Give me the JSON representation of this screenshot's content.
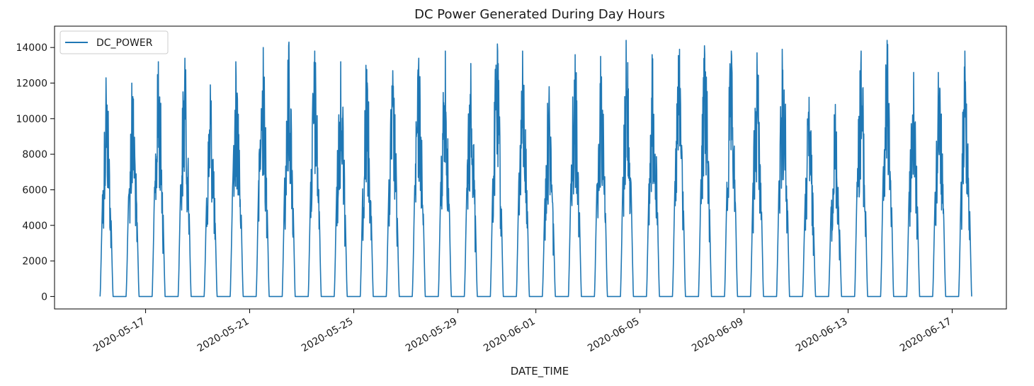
{
  "chart_data": {
    "type": "line",
    "title": "DC Power Generated During Day Hours",
    "xlabel": "DATE_TIME",
    "ylabel": "",
    "x_range": [
      "2020-05-13T12:00:00",
      "2020-06-19T02:00:00"
    ],
    "ylim": [
      -700,
      15200
    ],
    "y_ticks": [
      0,
      2000,
      4000,
      6000,
      8000,
      10000,
      12000,
      14000
    ],
    "x_ticks": [
      "2020-05-17",
      "2020-05-21",
      "2020-05-25",
      "2020-05-29",
      "2020-06-01",
      "2020-06-05",
      "2020-06-09",
      "2020-06-13",
      "2020-06-17"
    ],
    "grid": false,
    "legend": {
      "position": "top-left",
      "entries": [
        "DC_POWER"
      ]
    },
    "series": [
      {
        "name": "DC_POWER",
        "color": "#1f77b4",
        "sampling": "daylight hours approx. 06:00-18:00; daily peak values (W) estimated from the figure",
        "days": [
          {
            "date": "2020-05-15",
            "peak": 12300
          },
          {
            "date": "2020-05-16",
            "peak": 12000
          },
          {
            "date": "2020-05-17",
            "peak": 13200
          },
          {
            "date": "2020-05-18",
            "peak": 13400
          },
          {
            "date": "2020-05-19",
            "peak": 11900
          },
          {
            "date": "2020-05-20",
            "peak": 13200
          },
          {
            "date": "2020-05-21",
            "peak": 14000
          },
          {
            "date": "2020-05-22",
            "peak": 14300
          },
          {
            "date": "2020-05-23",
            "peak": 13800
          },
          {
            "date": "2020-05-24",
            "peak": 13200
          },
          {
            "date": "2020-05-25",
            "peak": 13000
          },
          {
            "date": "2020-05-26",
            "peak": 12700
          },
          {
            "date": "2020-05-27",
            "peak": 13400
          },
          {
            "date": "2020-05-28",
            "peak": 13800
          },
          {
            "date": "2020-05-29",
            "peak": 13100
          },
          {
            "date": "2020-05-30",
            "peak": 14200
          },
          {
            "date": "2020-05-31",
            "peak": 13800
          },
          {
            "date": "2020-06-01",
            "peak": 11800
          },
          {
            "date": "2020-06-02",
            "peak": 13600
          },
          {
            "date": "2020-06-03",
            "peak": 13500
          },
          {
            "date": "2020-06-04",
            "peak": 14400
          },
          {
            "date": "2020-06-05",
            "peak": 13600
          },
          {
            "date": "2020-06-06",
            "peak": 13900
          },
          {
            "date": "2020-06-07",
            "peak": 14100
          },
          {
            "date": "2020-06-08",
            "peak": 13800
          },
          {
            "date": "2020-06-09",
            "peak": 13700
          },
          {
            "date": "2020-06-10",
            "peak": 13900
          },
          {
            "date": "2020-06-11",
            "peak": 11200
          },
          {
            "date": "2020-06-12",
            "peak": 10800
          },
          {
            "date": "2020-06-13",
            "peak": 13800
          },
          {
            "date": "2020-06-14",
            "peak": 14400
          },
          {
            "date": "2020-06-15",
            "peak": 12600
          },
          {
            "date": "2020-06-16",
            "peak": 12600
          },
          {
            "date": "2020-06-17",
            "peak": 13800
          }
        ]
      }
    ]
  }
}
